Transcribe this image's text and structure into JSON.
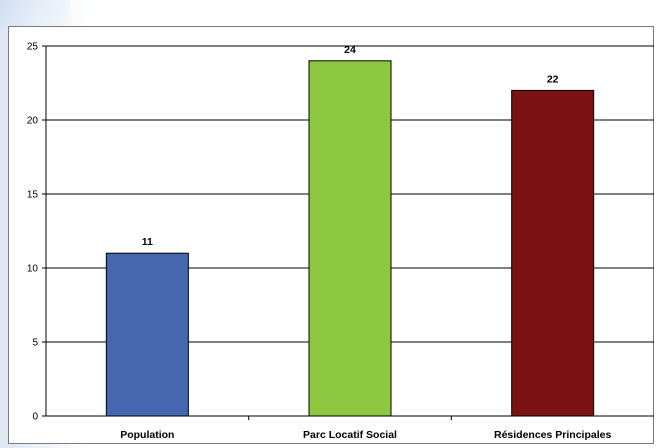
{
  "chart_data": {
    "type": "bar",
    "categories": [
      "Population",
      "Parc Locatif Social",
      "Résidences Principales"
    ],
    "values": [
      11,
      24,
      22
    ],
    "data_labels": [
      "11",
      "24",
      "22"
    ],
    "colors": [
      "#4467b0",
      "#8dc63f",
      "#7b1214"
    ],
    "title": "",
    "xlabel": "",
    "ylabel": "",
    "ylim": [
      0,
      25
    ],
    "yticks": [
      0,
      5,
      10,
      15,
      20,
      25
    ],
    "grid": true,
    "legend": "none"
  }
}
